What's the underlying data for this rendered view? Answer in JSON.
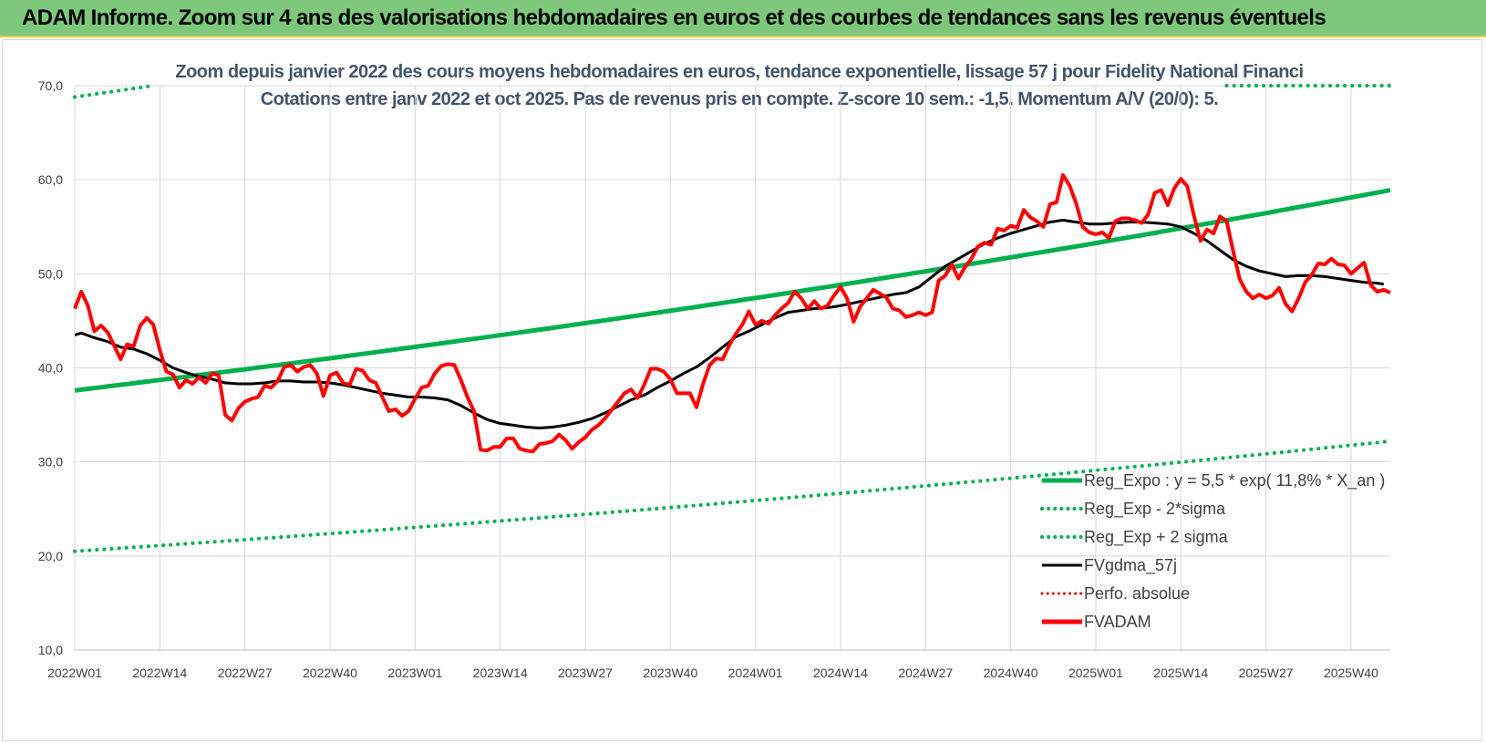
{
  "banner": {
    "title": "ADAM Informe. Zoom sur 4 ans des valorisations hebdomadaires en euros et des courbes de tendances sans les revenus éventuels",
    "background": "#7dc87a"
  },
  "chart_data": {
    "type": "line",
    "title_line1": "Zoom depuis janvier 2022 des cours moyens hebdomadaires en euros, tendance exponentielle, lissage 57 j pour Fidelity National Financi",
    "title_line2": "Cotations entre janv 2022 et oct 2025. Pas de revenus pris en compte. Z-score 10 sem.: -1,5. Momentum A/V (20/0): 5.",
    "xlabel": "",
    "ylabel": "",
    "ylim": [
      10,
      70
    ],
    "y_ticks": [
      "10,0",
      "20,0",
      "30,0",
      "40,0",
      "50,0",
      "60,0",
      "70,0"
    ],
    "x_tick_labels": [
      "2022W01",
      "2022W14",
      "2022W27",
      "2022W40",
      "2023W01",
      "2023W14",
      "2023W27",
      "2023W40",
      "2024W01",
      "2024W14",
      "2024W27",
      "2024W40",
      "2025W01",
      "2025W14",
      "2025W27",
      "2025W40"
    ],
    "x_tick_weeks": [
      0,
      13,
      26,
      39,
      52,
      65,
      78,
      91,
      104,
      117,
      130,
      143,
      156,
      169,
      182,
      195
    ],
    "n_weeks": 201,
    "grid": true,
    "legend_position": "bottom-right",
    "series": [
      {
        "name": "Reg_Expo : y = 5,5 * exp( 11,8% * X_an )",
        "style": "solid-thick",
        "color": "#00b050",
        "start": 37.6,
        "end": 58.9
      },
      {
        "name": "Reg_Exp - 2*sigma",
        "style": "dotted",
        "color": "#00b050",
        "start": 20.5,
        "end": 32.2
      },
      {
        "name": "Reg_Exp + 2 sigma",
        "style": "dotted",
        "color": "#00b050",
        "start": 68.8,
        "end": 70.0
      },
      {
        "name": "FVgdma_57j",
        "style": "solid",
        "color": "#000000",
        "points": [
          [
            0,
            43.5
          ],
          [
            1,
            43.7
          ],
          [
            3,
            43.2
          ],
          [
            5,
            42.8
          ],
          [
            7,
            42.2
          ],
          [
            9,
            42.0
          ],
          [
            11,
            41.5
          ],
          [
            13,
            40.8
          ],
          [
            15,
            40.0
          ],
          [
            17,
            39.5
          ],
          [
            19,
            39.1
          ],
          [
            21,
            38.8
          ],
          [
            23,
            38.4
          ],
          [
            25,
            38.3
          ],
          [
            27,
            38.3
          ],
          [
            29,
            38.4
          ],
          [
            31,
            38.6
          ],
          [
            33,
            38.6
          ],
          [
            35,
            38.5
          ],
          [
            37,
            38.5
          ],
          [
            39,
            38.4
          ],
          [
            41,
            38.2
          ],
          [
            43,
            37.9
          ],
          [
            45,
            37.6
          ],
          [
            47,
            37.3
          ],
          [
            49,
            37.1
          ],
          [
            51,
            36.9
          ],
          [
            53,
            36.9
          ],
          [
            55,
            36.8
          ],
          [
            57,
            36.6
          ],
          [
            59,
            36.0
          ],
          [
            61,
            35.2
          ],
          [
            63,
            34.5
          ],
          [
            65,
            34.1
          ],
          [
            67,
            33.9
          ],
          [
            69,
            33.7
          ],
          [
            71,
            33.6
          ],
          [
            73,
            33.7
          ],
          [
            75,
            33.9
          ],
          [
            77,
            34.2
          ],
          [
            79,
            34.6
          ],
          [
            81,
            35.2
          ],
          [
            83,
            35.9
          ],
          [
            85,
            36.6
          ],
          [
            87,
            37.1
          ],
          [
            89,
            37.9
          ],
          [
            91,
            38.6
          ],
          [
            93,
            39.4
          ],
          [
            95,
            40.1
          ],
          [
            97,
            41.1
          ],
          [
            99,
            42.2
          ],
          [
            101,
            43.3
          ],
          [
            103,
            43.9
          ],
          [
            105,
            44.6
          ],
          [
            107,
            45.3
          ],
          [
            109,
            45.9
          ],
          [
            111,
            46.1
          ],
          [
            113,
            46.3
          ],
          [
            115,
            46.4
          ],
          [
            117,
            46.6
          ],
          [
            119,
            46.9
          ],
          [
            121,
            47.2
          ],
          [
            123,
            47.5
          ],
          [
            125,
            47.8
          ],
          [
            127,
            48.0
          ],
          [
            129,
            48.6
          ],
          [
            131,
            49.7
          ],
          [
            133,
            50.8
          ],
          [
            135,
            51.6
          ],
          [
            137,
            52.4
          ],
          [
            139,
            53.2
          ],
          [
            141,
            53.8
          ],
          [
            143,
            54.3
          ],
          [
            145,
            54.7
          ],
          [
            147,
            55.1
          ],
          [
            149,
            55.5
          ],
          [
            151,
            55.7
          ],
          [
            153,
            55.5
          ],
          [
            155,
            55.3
          ],
          [
            157,
            55.3
          ],
          [
            159,
            55.4
          ],
          [
            161,
            55.5
          ],
          [
            163,
            55.5
          ],
          [
            165,
            55.4
          ],
          [
            167,
            55.3
          ],
          [
            169,
            55.0
          ],
          [
            171,
            54.3
          ],
          [
            173,
            53.5
          ],
          [
            175,
            52.5
          ],
          [
            177,
            51.5
          ],
          [
            179,
            50.8
          ],
          [
            181,
            50.3
          ],
          [
            183,
            50.0
          ],
          [
            185,
            49.7
          ],
          [
            187,
            49.8
          ],
          [
            189,
            49.8
          ],
          [
            191,
            49.7
          ],
          [
            193,
            49.5
          ],
          [
            195,
            49.3
          ],
          [
            197,
            49.1
          ],
          [
            199,
            49.0
          ],
          [
            200,
            48.9
          ]
        ]
      },
      {
        "name": "Perfo. absolue",
        "style": "dotted",
        "color": "#e00000",
        "points": []
      },
      {
        "name": "FVADAM",
        "style": "solid-thick",
        "color": "#ff0000",
        "points": [
          [
            0,
            46.3
          ],
          [
            1,
            48.1
          ],
          [
            2,
            46.6
          ],
          [
            3,
            43.9
          ],
          [
            4,
            44.5
          ],
          [
            5,
            43.8
          ],
          [
            6,
            42.4
          ],
          [
            7,
            40.9
          ],
          [
            8,
            42.5
          ],
          [
            9,
            42.3
          ],
          [
            10,
            44.5
          ],
          [
            11,
            45.3
          ],
          [
            12,
            44.6
          ],
          [
            13,
            41.9
          ],
          [
            14,
            39.6
          ],
          [
            15,
            39.3
          ],
          [
            16,
            37.9
          ],
          [
            17,
            38.7
          ],
          [
            18,
            38.3
          ],
          [
            19,
            39.0
          ],
          [
            20,
            38.4
          ],
          [
            21,
            39.4
          ],
          [
            22,
            39.2
          ],
          [
            23,
            35.0
          ],
          [
            24,
            34.4
          ],
          [
            25,
            35.7
          ],
          [
            26,
            36.4
          ],
          [
            27,
            36.7
          ],
          [
            28,
            36.9
          ],
          [
            29,
            38.1
          ],
          [
            30,
            37.9
          ],
          [
            31,
            38.6
          ],
          [
            32,
            40.1
          ],
          [
            33,
            40.3
          ],
          [
            34,
            39.6
          ],
          [
            35,
            40.1
          ],
          [
            36,
            40.3
          ],
          [
            37,
            39.4
          ],
          [
            38,
            37.0
          ],
          [
            39,
            39.2
          ],
          [
            40,
            39.5
          ],
          [
            41,
            38.4
          ],
          [
            42,
            38.2
          ],
          [
            43,
            39.9
          ],
          [
            44,
            39.7
          ],
          [
            45,
            38.7
          ],
          [
            46,
            38.4
          ],
          [
            47,
            36.9
          ],
          [
            48,
            35.4
          ],
          [
            49,
            35.6
          ],
          [
            50,
            34.9
          ],
          [
            51,
            35.4
          ],
          [
            52,
            36.7
          ],
          [
            53,
            37.9
          ],
          [
            54,
            38.1
          ],
          [
            55,
            39.4
          ],
          [
            56,
            40.2
          ],
          [
            57,
            40.4
          ],
          [
            58,
            40.3
          ],
          [
            59,
            38.7
          ],
          [
            60,
            36.9
          ],
          [
            61,
            35.4
          ],
          [
            62,
            31.3
          ],
          [
            63,
            31.2
          ],
          [
            64,
            31.6
          ],
          [
            65,
            31.6
          ],
          [
            66,
            32.5
          ],
          [
            67,
            32.5
          ],
          [
            68,
            31.4
          ],
          [
            69,
            31.2
          ],
          [
            70,
            31.1
          ],
          [
            71,
            31.9
          ],
          [
            72,
            32.0
          ],
          [
            73,
            32.2
          ],
          [
            74,
            32.9
          ],
          [
            75,
            32.3
          ],
          [
            76,
            31.4
          ],
          [
            77,
            32.1
          ],
          [
            78,
            32.6
          ],
          [
            79,
            33.4
          ],
          [
            80,
            33.9
          ],
          [
            81,
            34.6
          ],
          [
            82,
            35.5
          ],
          [
            83,
            36.4
          ],
          [
            84,
            37.3
          ],
          [
            85,
            37.7
          ],
          [
            86,
            36.8
          ],
          [
            87,
            38.2
          ],
          [
            88,
            39.9
          ],
          [
            89,
            39.9
          ],
          [
            90,
            39.6
          ],
          [
            91,
            38.8
          ],
          [
            92,
            37.3
          ],
          [
            93,
            37.3
          ],
          [
            94,
            37.3
          ],
          [
            95,
            35.8
          ],
          [
            96,
            38.3
          ],
          [
            97,
            40.3
          ],
          [
            98,
            41.0
          ],
          [
            99,
            40.9
          ],
          [
            100,
            42.4
          ],
          [
            101,
            43.6
          ],
          [
            102,
            44.6
          ],
          [
            103,
            46.0
          ],
          [
            104,
            44.6
          ],
          [
            105,
            45.0
          ],
          [
            106,
            44.7
          ],
          [
            107,
            45.6
          ],
          [
            108,
            46.3
          ],
          [
            109,
            46.9
          ],
          [
            110,
            48.1
          ],
          [
            111,
            47.4
          ],
          [
            112,
            46.3
          ],
          [
            113,
            47.1
          ],
          [
            114,
            46.3
          ],
          [
            115,
            46.6
          ],
          [
            116,
            47.7
          ],
          [
            117,
            48.6
          ],
          [
            118,
            47.4
          ],
          [
            119,
            44.9
          ],
          [
            120,
            46.5
          ],
          [
            121,
            47.4
          ],
          [
            122,
            48.3
          ],
          [
            123,
            47.9
          ],
          [
            124,
            47.5
          ],
          [
            125,
            46.3
          ],
          [
            126,
            46.1
          ],
          [
            127,
            45.4
          ],
          [
            128,
            45.6
          ],
          [
            129,
            45.9
          ],
          [
            130,
            45.6
          ],
          [
            131,
            45.9
          ],
          [
            132,
            49.3
          ],
          [
            133,
            49.8
          ],
          [
            134,
            51.0
          ],
          [
            135,
            49.5
          ],
          [
            136,
            50.7
          ],
          [
            137,
            51.6
          ],
          [
            138,
            52.9
          ],
          [
            139,
            53.3
          ],
          [
            140,
            53.1
          ],
          [
            141,
            54.8
          ],
          [
            142,
            54.6
          ],
          [
            143,
            55.1
          ],
          [
            144,
            54.9
          ],
          [
            145,
            56.8
          ],
          [
            146,
            56.0
          ],
          [
            147,
            55.6
          ],
          [
            148,
            55.0
          ],
          [
            149,
            57.4
          ],
          [
            150,
            57.6
          ],
          [
            151,
            60.5
          ],
          [
            152,
            59.4
          ],
          [
            153,
            57.5
          ],
          [
            154,
            55.0
          ],
          [
            155,
            54.4
          ],
          [
            156,
            54.2
          ],
          [
            157,
            54.4
          ],
          [
            158,
            53.8
          ],
          [
            159,
            55.6
          ],
          [
            160,
            55.9
          ],
          [
            161,
            55.9
          ],
          [
            162,
            55.7
          ],
          [
            163,
            55.4
          ],
          [
            164,
            56.3
          ],
          [
            165,
            58.6
          ],
          [
            166,
            58.9
          ],
          [
            167,
            57.3
          ],
          [
            168,
            59.1
          ],
          [
            169,
            60.1
          ],
          [
            170,
            59.3
          ],
          [
            171,
            56.2
          ],
          [
            172,
            53.5
          ],
          [
            173,
            54.7
          ],
          [
            174,
            54.3
          ],
          [
            175,
            56.1
          ],
          [
            176,
            55.6
          ],
          [
            177,
            52.4
          ],
          [
            178,
            49.4
          ],
          [
            179,
            48.1
          ],
          [
            180,
            47.4
          ],
          [
            181,
            47.8
          ],
          [
            182,
            47.4
          ],
          [
            183,
            47.7
          ],
          [
            184,
            48.5
          ],
          [
            185,
            46.8
          ],
          [
            186,
            46.0
          ],
          [
            187,
            47.4
          ],
          [
            188,
            49.1
          ],
          [
            189,
            49.9
          ],
          [
            190,
            51.1
          ],
          [
            191,
            51.0
          ],
          [
            192,
            51.6
          ],
          [
            193,
            51.0
          ],
          [
            194,
            50.9
          ],
          [
            195,
            50.0
          ],
          [
            196,
            50.6
          ],
          [
            197,
            51.2
          ],
          [
            198,
            48.8
          ],
          [
            199,
            48.1
          ],
          [
            200,
            48.3
          ],
          [
            201,
            48.0
          ]
        ]
      }
    ]
  }
}
